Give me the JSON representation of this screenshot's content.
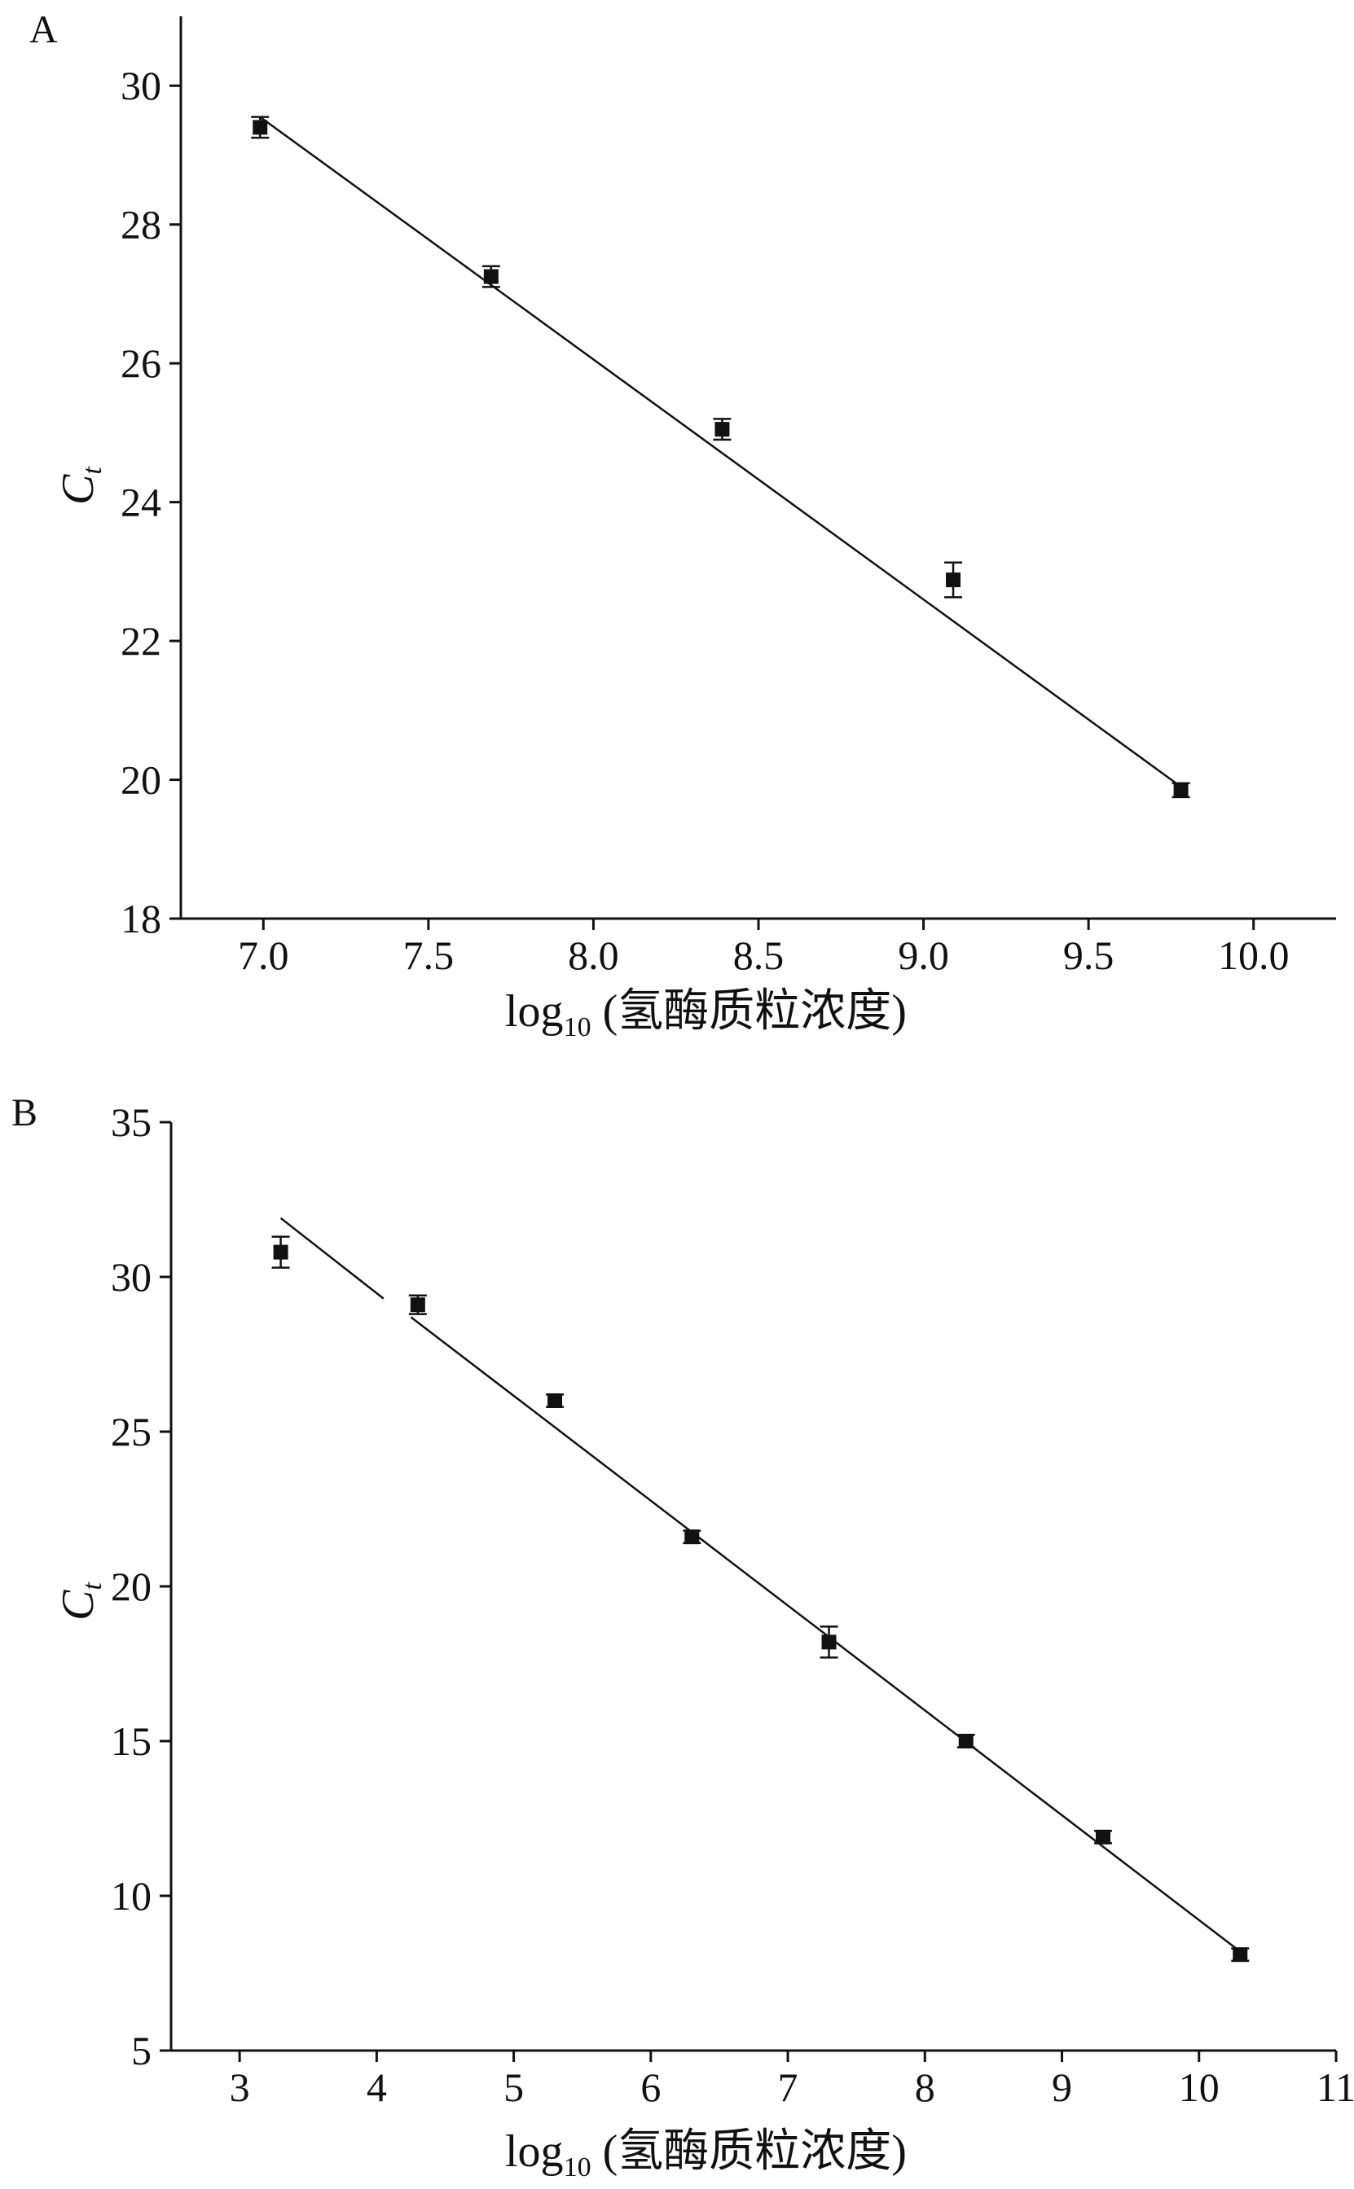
{
  "chart_data": [
    {
      "panel_label": "A",
      "type": "scatter",
      "xlabel": "log",
      "xlabel_sub": "10",
      "xlabel_rest": " (氢酶质粒浓度)",
      "ylabel": "C",
      "ylabel_sub": "t",
      "xlim": [
        6.75,
        10.25
      ],
      "ylim": [
        18,
        31
      ],
      "xticks": [
        7.0,
        7.5,
        8.0,
        8.5,
        9.0,
        9.5,
        10.0
      ],
      "xtick_labels": [
        "7.0",
        "7.5",
        "8.0",
        "8.5",
        "9.0",
        "9.5",
        "10.0"
      ],
      "yticks": [
        18,
        20,
        22,
        24,
        26,
        28,
        30
      ],
      "ytick_labels": [
        "18",
        "20",
        "22",
        "24",
        "26",
        "28",
        "30"
      ],
      "points": [
        {
          "x": 6.99,
          "y": 29.4,
          "err": 0.15
        },
        {
          "x": 7.69,
          "y": 27.25,
          "err": 0.15
        },
        {
          "x": 8.39,
          "y": 25.05,
          "err": 0.15
        },
        {
          "x": 9.09,
          "y": 22.88,
          "err": 0.25
        },
        {
          "x": 9.78,
          "y": 19.85,
          "err": 0.1
        }
      ],
      "fit": [
        [
          6.99,
          29.55
        ],
        [
          9.78,
          19.9
        ]
      ],
      "grid": false
    },
    {
      "panel_label": "B",
      "type": "scatter",
      "xlabel": "log",
      "xlabel_sub": "10",
      "xlabel_rest": " (氢酶质粒浓度)",
      "ylabel": "C",
      "ylabel_sub": "t",
      "xlim": [
        2.5,
        11
      ],
      "ylim": [
        5,
        35
      ],
      "xticks": [
        3,
        4,
        5,
        6,
        7,
        8,
        9,
        10,
        11
      ],
      "xtick_labels": [
        "3",
        "4",
        "5",
        "6",
        "7",
        "8",
        "9",
        "10",
        "11"
      ],
      "yticks": [
        5,
        10,
        15,
        20,
        25,
        30,
        35
      ],
      "ytick_labels": [
        "5",
        "10",
        "15",
        "20",
        "25",
        "30",
        "35"
      ],
      "points": [
        {
          "x": 3.3,
          "y": 30.8,
          "err": 0.5
        },
        {
          "x": 4.3,
          "y": 29.1,
          "err": 0.3
        },
        {
          "x": 5.3,
          "y": 26.0,
          "err": 0.2
        },
        {
          "x": 6.3,
          "y": 21.6,
          "err": 0.2
        },
        {
          "x": 7.3,
          "y": 18.2,
          "err": 0.5
        },
        {
          "x": 8.3,
          "y": 15.0,
          "err": 0.2
        },
        {
          "x": 9.3,
          "y": 11.9,
          "err": 0.2
        },
        {
          "x": 10.3,
          "y": 8.1,
          "err": 0.2
        }
      ],
      "fit_segments": [
        [
          [
            3.3,
            31.9
          ],
          [
            4.05,
            29.3
          ]
        ],
        [
          [
            4.25,
            28.7
          ],
          [
            10.3,
            8.2
          ]
        ]
      ],
      "grid": false
    }
  ]
}
